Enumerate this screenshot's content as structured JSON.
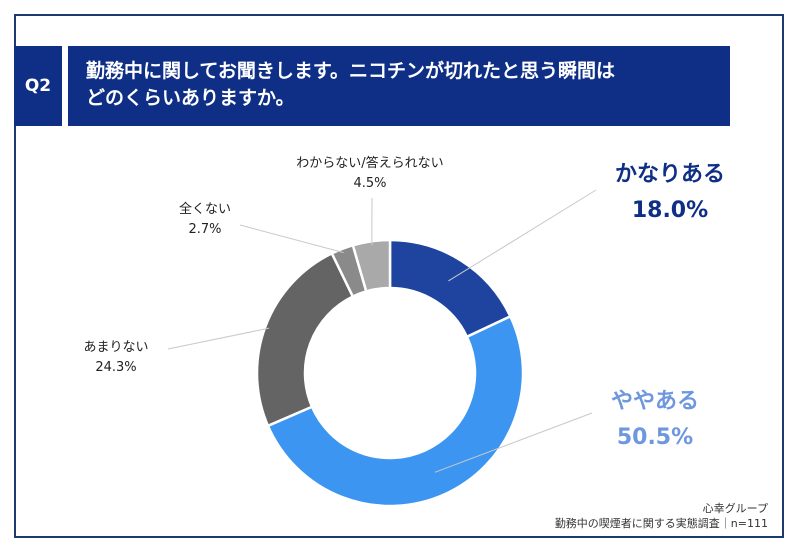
{
  "question": {
    "number": "Q2",
    "lines": [
      "勤務中に関してお聞きします。ニコチンが切れたと思う瞬間は",
      "どのくらいありますか。"
    ]
  },
  "chart_data": {
    "type": "donut",
    "title": "",
    "slices": [
      {
        "label": "かなりある",
        "value": 18.0,
        "value_label": "18.0%",
        "color": "#1e44a0"
      },
      {
        "label": "ややある",
        "value": 50.5,
        "value_label": "50.5%",
        "color": "#3b95f1"
      },
      {
        "label": "あまりない",
        "value": 24.3,
        "value_label": "24.3%",
        "color": "#646464"
      },
      {
        "label": "全くない",
        "value": 2.7,
        "value_label": "2.7%",
        "color": "#8a8a8a"
      },
      {
        "label": "わからない/答えられない",
        "value": 4.5,
        "value_label": "4.5%",
        "color": "#a9a9a9"
      }
    ],
    "label_colors": {
      "かなりある": "#0f2f86",
      "ややある": "#6e97de"
    }
  },
  "footer": {
    "source": "心幸グループ",
    "survey": "勤務中の喫煙者に関する実態調査｜n=111"
  }
}
